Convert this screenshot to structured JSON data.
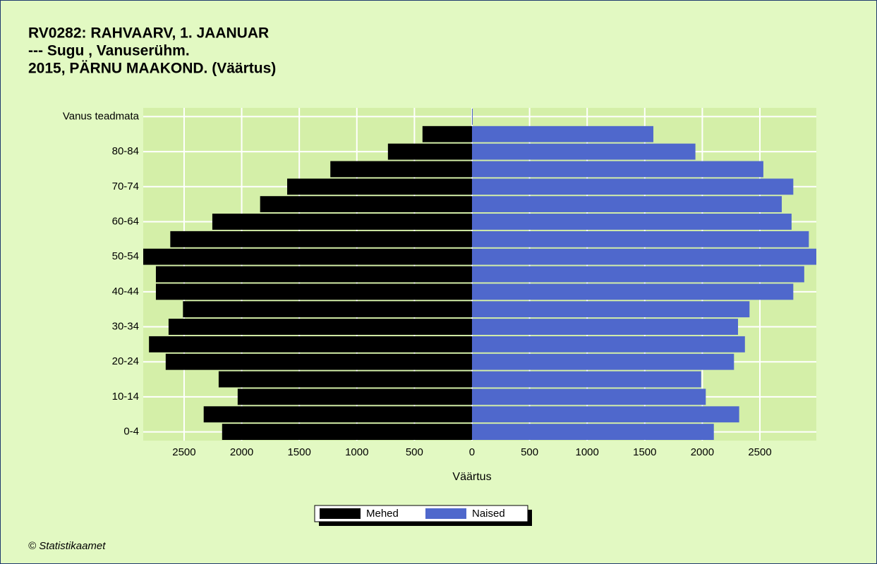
{
  "chart_data": {
    "type": "pyramid",
    "title": [
      "RV0282: RAHVAARV, 1. JAANUAR",
      "--- Sugu , Vanuserühm.",
      "2015, PÄRNU MAAKOND. (Väärtus)"
    ],
    "x_label": "Väärtus",
    "source": "© Statistikaamet",
    "categories": [
      "0-4",
      null,
      "10-14",
      null,
      "20-24",
      null,
      "30-34",
      null,
      "40-44",
      null,
      "50-54",
      null,
      "60-64",
      null,
      "70-74",
      null,
      "80-84",
      null,
      "Vanus teadmata"
    ],
    "series": [
      {
        "name": "Mehed",
        "color": "#000000",
        "values": [
          -2170,
          -2330,
          -2035,
          -2200,
          -2660,
          -2805,
          -2635,
          -2510,
          -2745,
          -2745,
          -2855,
          -2620,
          -2255,
          -1840,
          -1605,
          -1230,
          -730,
          -430,
          0
        ]
      },
      {
        "name": "Naised",
        "color": "#4f68cc",
        "values": [
          2100,
          2320,
          2030,
          1990,
          2275,
          2370,
          2310,
          2410,
          2790,
          2885,
          2990,
          2925,
          2775,
          2690,
          2790,
          2530,
          1940,
          1575,
          3
        ]
      }
    ],
    "xlim": [
      -2855,
      2990
    ],
    "xticks": [
      {
        "value": -2500,
        "label": "2500"
      },
      {
        "value": -2000,
        "label": "2000"
      },
      {
        "value": -1500,
        "label": "1500"
      },
      {
        "value": -1000,
        "label": "1000"
      },
      {
        "value": -500,
        "label": "500"
      },
      0,
      500,
      1000,
      1500,
      2000,
      2500
    ],
    "grid": true
  }
}
